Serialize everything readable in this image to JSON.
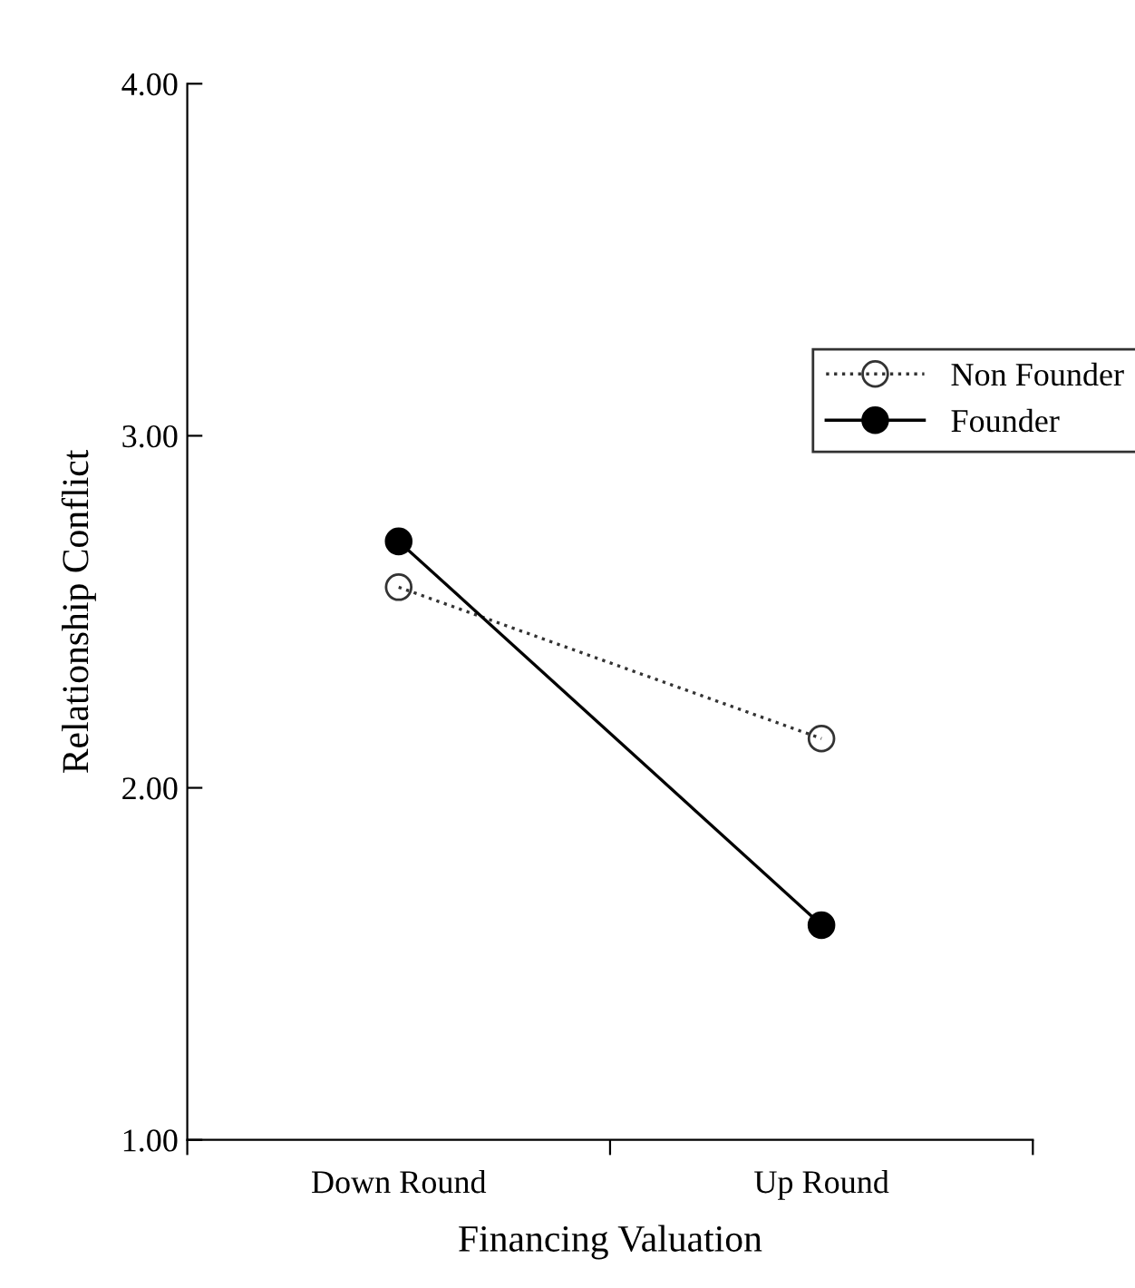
{
  "chart_data": {
    "type": "line",
    "xlabel": "Financing Valuation",
    "ylabel": "Relationship Conflict",
    "categories": [
      "Down Round",
      "Up Round"
    ],
    "series": [
      {
        "name": "Non Founder",
        "color": "#333333",
        "values": [
          2.57,
          2.14
        ],
        "line_style": "dotted",
        "marker": "circle"
      },
      {
        "name": "Founder",
        "color": "#000000",
        "values": [
          2.7,
          1.61
        ],
        "line_style": "solid",
        "marker": "circle"
      }
    ],
    "ylim": [
      1,
      4
    ],
    "yticks": [
      {
        "value": 1,
        "label": "1.00"
      },
      {
        "value": 2,
        "label": "2.00"
      },
      {
        "value": 3,
        "label": "3.00"
      },
      {
        "value": 4,
        "label": "4.00"
      }
    ],
    "grid": false,
    "legend": "right"
  }
}
